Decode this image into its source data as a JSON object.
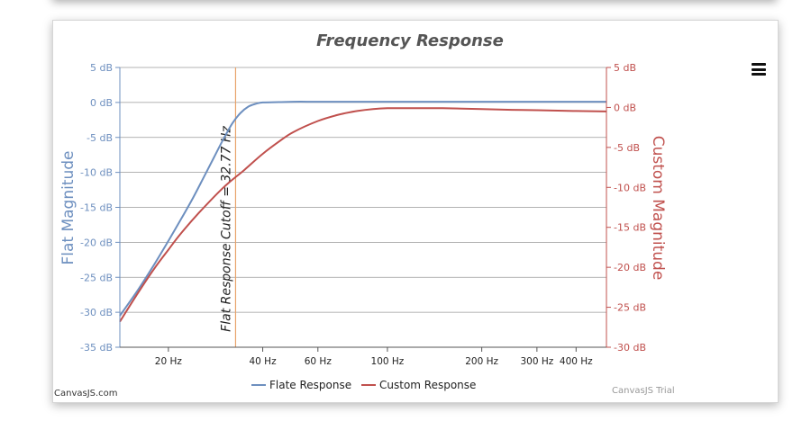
{
  "chart_data": {
    "type": "line",
    "title": "Frequency Response",
    "x_axis": {
      "scale": "log",
      "range": [
        14,
        500
      ],
      "tick_values": [
        20,
        40,
        60,
        100,
        200,
        300,
        400
      ],
      "tick_labels": [
        "20 Hz",
        "40 Hz",
        "60 Hz",
        "100 Hz",
        "200 Hz",
        "300 Hz",
        "400 Hz"
      ]
    },
    "y_axis_left": {
      "label": "Flat Magnitude",
      "range": [
        -35,
        5
      ],
      "tick_values": [
        5,
        0,
        -5,
        -10,
        -15,
        -20,
        -25,
        -30,
        -35
      ],
      "tick_labels": [
        "5 dB",
        "0 dB",
        "-5 dB",
        "-10 dB",
        "-15 dB",
        "-20 dB",
        "-25 dB",
        "-30 dB",
        "-35 dB"
      ],
      "color": "#6d8fbf"
    },
    "y_axis_right": {
      "label": "Custom Magnitude",
      "range": [
        -30,
        5
      ],
      "tick_values": [
        5,
        0,
        -5,
        -10,
        -15,
        -20,
        -25,
        -30
      ],
      "tick_labels": [
        "5 dB",
        "0 dB",
        "-5 dB",
        "-10 dB",
        "-15 dB",
        "-20 dB",
        "-25 dB",
        "-30 dB"
      ],
      "color": "#c0504d"
    },
    "grid": true,
    "legend": "bottom-center",
    "series": [
      {
        "name": "Flate Response",
        "axis": "left",
        "color": "#6d8fbf",
        "x": [
          14,
          16,
          18,
          20,
          22,
          24,
          26,
          28,
          30,
          32,
          34,
          36,
          38,
          40,
          45,
          50,
          60,
          80,
          100,
          150,
          200,
          300,
          400,
          500
        ],
        "y": [
          -30.5,
          -26.8,
          -23.2,
          -19.8,
          -16.6,
          -13.6,
          -10.6,
          -7.8,
          -5.2,
          -3.0,
          -1.5,
          -0.6,
          -0.2,
          0.0,
          0.05,
          0.1,
          0.1,
          0.1,
          0.1,
          0.1,
          0.1,
          0.1,
          0.1,
          0.1
        ]
      },
      {
        "name": "Custom Response",
        "axis": "right",
        "color": "#c0504d",
        "x": [
          14,
          16,
          18,
          20,
          22,
          25,
          30,
          35,
          40,
          45,
          50,
          60,
          70,
          80,
          90,
          100,
          120,
          150,
          200,
          250,
          300,
          400,
          500
        ],
        "y": [
          -26.8,
          -23.2,
          -20.2,
          -17.8,
          -15.7,
          -13.2,
          -10.0,
          -7.8,
          -5.8,
          -4.3,
          -3.1,
          -1.7,
          -0.9,
          -0.45,
          -0.2,
          -0.1,
          -0.1,
          -0.1,
          -0.2,
          -0.3,
          -0.35,
          -0.45,
          -0.5
        ]
      }
    ],
    "annotations": [
      {
        "type": "vertical-line",
        "x": 32.77,
        "label": "Flat Response Cutoff = 32.77 Hz",
        "color": "#e8a36b"
      }
    ]
  },
  "credits": {
    "left": "CanvasJS.com",
    "right": "CanvasJS Trial"
  },
  "menu": {
    "icon": "hamburger-menu-icon"
  }
}
